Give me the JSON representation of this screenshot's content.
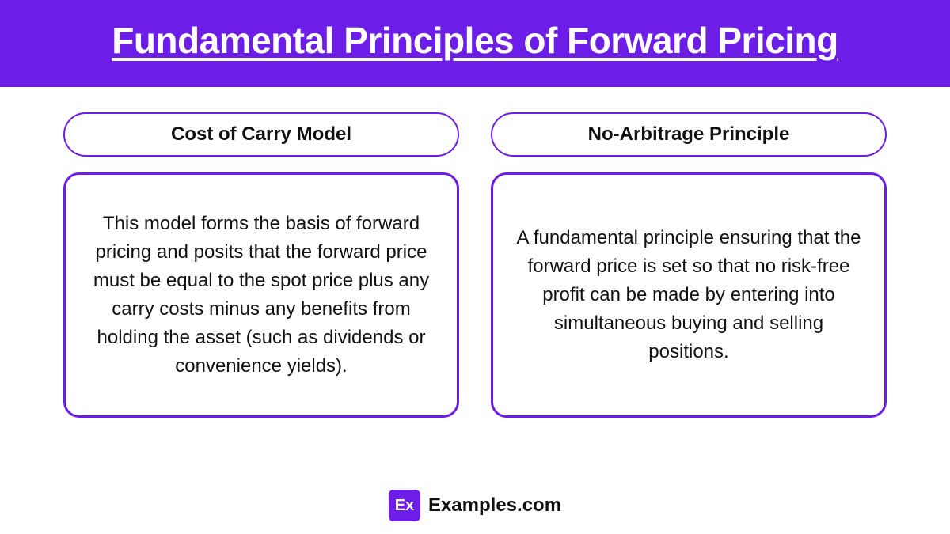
{
  "header": {
    "title": "Fundamental Principles of Forward Pricing",
    "background_color": "#6c1de8",
    "text_color": "#ffffff"
  },
  "columns": [
    {
      "title": "Cost of Carry Model",
      "body": "This model forms the basis of forward pricing and posits that the forward price must be equal to the spot price plus any carry costs minus any benefits from holding the asset (such as dividends or convenience yields)."
    },
    {
      "title": "No-Arbitrage Principle",
      "body": "A fundamental principle ensuring that the forward price is set so that no risk-free profit can be made by entering into simultaneous buying and selling positions."
    }
  ],
  "styling": {
    "border_color": "#6c1de8",
    "pill_border_width": 2,
    "box_border_width": 3,
    "box_border_radius": 20,
    "pill_border_radius": 40,
    "title_fontsize": 46,
    "pill_fontsize": 24,
    "body_fontsize": 24,
    "text_color": "#111111",
    "page_background": "#ffffff"
  },
  "footer": {
    "badge_text": "Ex",
    "badge_background": "#6c1de8",
    "badge_text_color": "#ffffff",
    "label": "Examples.com"
  }
}
